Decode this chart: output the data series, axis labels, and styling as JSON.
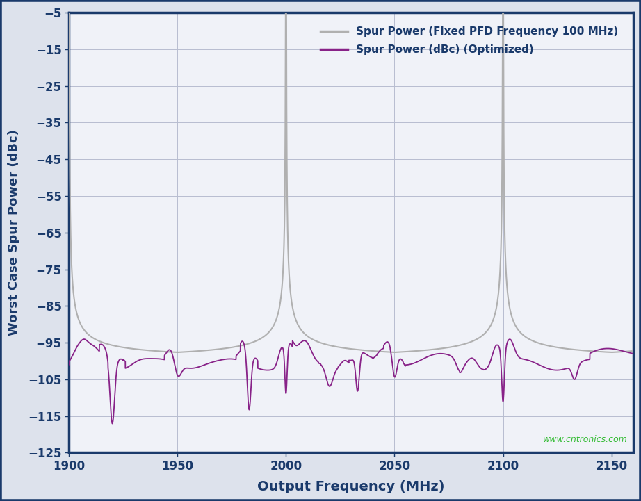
{
  "xlabel": "Output Frequency (MHz)",
  "ylabel": "Worst Case Spur Power (dBc)",
  "xlim": [
    1900,
    2160
  ],
  "ylim": [
    -125,
    -5
  ],
  "xticks": [
    1900,
    1950,
    2000,
    2050,
    2100,
    2150
  ],
  "yticks": [
    -125,
    -115,
    -105,
    -95,
    -85,
    -75,
    -65,
    -55,
    -45,
    -35,
    -25,
    -15,
    -5
  ],
  "fig_background": "#dde2ec",
  "plot_background": "#f0f2f8",
  "border_color": "#1a3a6b",
  "grid_color": "#b8bdd0",
  "legend1_label": "Spur Power (Fixed PFD Frequency 100 MHz)",
  "legend2_label": "Spur Power (dBc) (Optimized)",
  "line1_color": "#b0b0b0",
  "line2_color": "#882288",
  "watermark": "www.cntronics.com",
  "watermark_color": "#33bb33",
  "label_color": "#1a3a6b"
}
